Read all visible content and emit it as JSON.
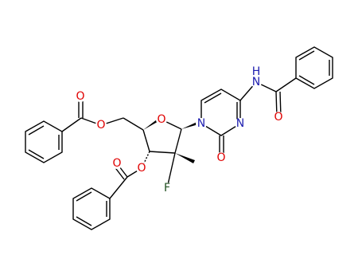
{
  "atoms": [
    {
      "label": "O"
    },
    {
      "label": "O"
    },
    {
      "label": "O"
    },
    {
      "label": "N"
    },
    {
      "label": "N"
    },
    {
      "label": "O"
    },
    {
      "label": "N"
    },
    {
      "label": "H"
    },
    {
      "label": "O"
    },
    {
      "label": "O"
    },
    {
      "label": "O"
    },
    {
      "label": "F"
    }
  ]
}
